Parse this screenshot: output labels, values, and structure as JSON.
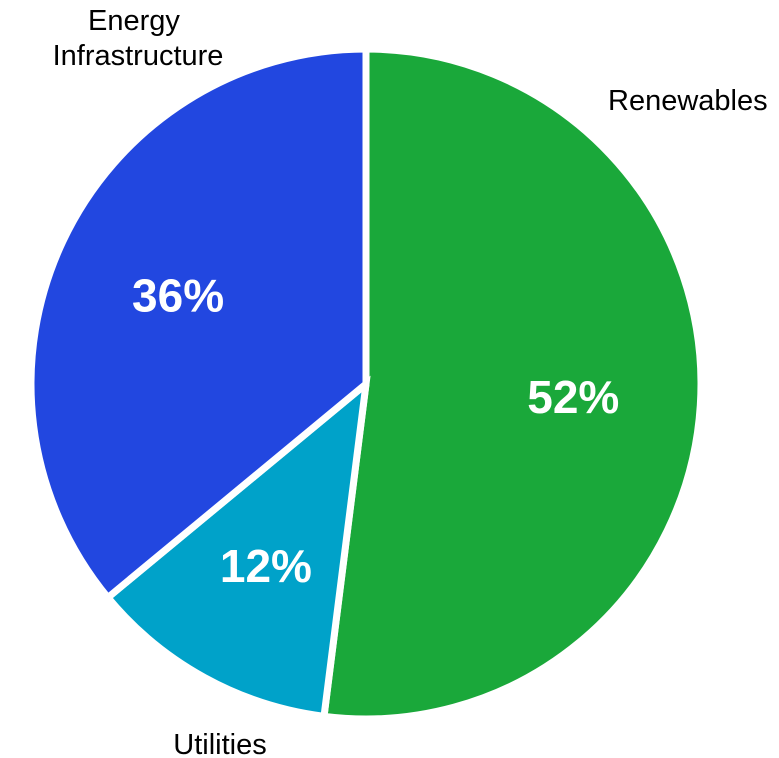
{
  "chart_data": {
    "type": "pie",
    "start_angle_deg": 0,
    "direction": "clockwise",
    "slices": [
      {
        "label": "Renewables",
        "value": 52,
        "value_label": "52%",
        "color": "#1aa83a"
      },
      {
        "label": "Utilities",
        "value": 12,
        "value_label": "12%",
        "color": "#00a2c9"
      },
      {
        "label": "Energy Infrastructure",
        "label_lines": [
          "Energy",
          "Infrastructure"
        ],
        "value": 36,
        "value_label": "36%",
        "color": "#2247e0"
      }
    ]
  }
}
